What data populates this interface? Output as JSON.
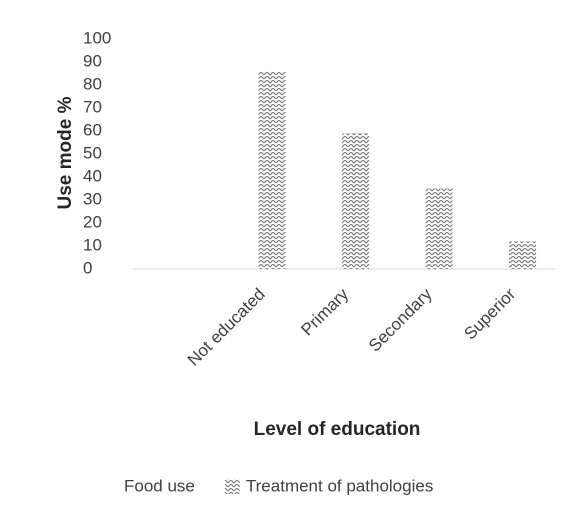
{
  "chart_data": {
    "type": "bar",
    "categories": [
      "Not educated",
      "Primary",
      "Secondary",
      "Superior"
    ],
    "series": [
      {
        "name": "Food use",
        "color": "#ffffff",
        "values": [
          0,
          0,
          0,
          0
        ]
      },
      {
        "name": "Treatment of pathologies",
        "color": "#7f7f7f",
        "values": [
          86,
          59,
          35,
          12
        ]
      }
    ],
    "ylabel": "Use mode %",
    "xlabel": "Level of education",
    "ylim": [
      0,
      100
    ],
    "yticks": [
      0,
      10,
      20,
      30,
      40,
      50,
      60,
      70,
      80,
      90,
      100
    ],
    "grid": false,
    "legend": "bottom"
  }
}
